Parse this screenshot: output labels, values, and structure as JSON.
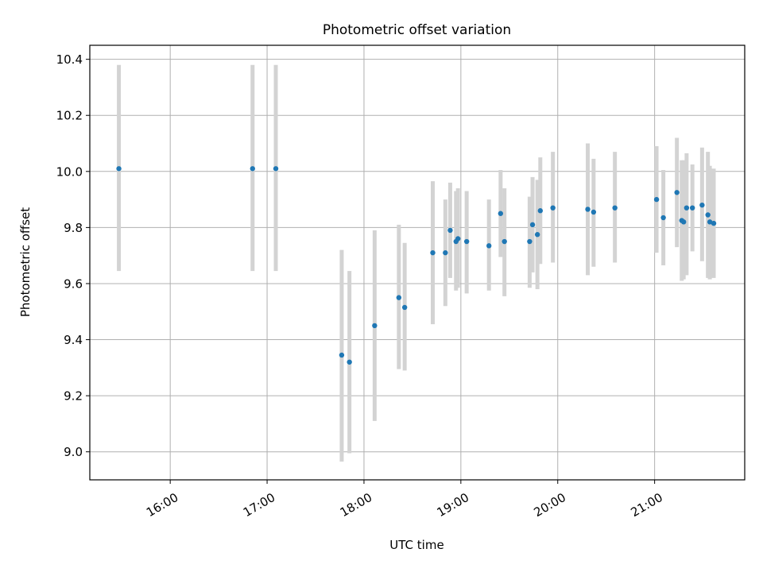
{
  "chart_data": {
    "type": "scatter",
    "title": "Photometric offset variation",
    "xlabel": "UTC time",
    "ylabel": "Photometric offset",
    "x_unit": "hours UTC",
    "xlim": [
      15.17,
      21.93
    ],
    "ylim": [
      8.9,
      10.45
    ],
    "x_ticks": [
      16,
      17,
      18,
      19,
      20,
      21
    ],
    "x_tick_labels": [
      "16:00",
      "17:00",
      "18:00",
      "19:00",
      "20:00",
      "21:00"
    ],
    "y_ticks": [
      9.0,
      9.2,
      9.4,
      9.6,
      9.8,
      10.0,
      10.2,
      10.4
    ],
    "y_tick_labels": [
      "9.0",
      "9.2",
      "9.4",
      "9.6",
      "9.8",
      "10.0",
      "10.2",
      "10.4"
    ],
    "grid": true,
    "colors": {
      "point": "#1f77b4",
      "errorbar": "#d3d3d3",
      "grid": "#b0b0b0"
    },
    "points": [
      {
        "x": 15.47,
        "y": 10.01,
        "ylo": 9.645,
        "yhi": 10.38
      },
      {
        "x": 16.85,
        "y": 10.01,
        "ylo": 9.645,
        "yhi": 10.38
      },
      {
        "x": 17.09,
        "y": 10.01,
        "ylo": 9.645,
        "yhi": 10.38
      },
      {
        "x": 17.77,
        "y": 9.345,
        "ylo": 8.965,
        "yhi": 9.72
      },
      {
        "x": 17.85,
        "y": 9.32,
        "ylo": 8.995,
        "yhi": 9.645
      },
      {
        "x": 18.11,
        "y": 9.45,
        "ylo": 9.11,
        "yhi": 9.79
      },
      {
        "x": 18.36,
        "y": 9.55,
        "ylo": 9.295,
        "yhi": 9.81
      },
      {
        "x": 18.42,
        "y": 9.515,
        "ylo": 9.29,
        "yhi": 9.745
      },
      {
        "x": 18.71,
        "y": 9.71,
        "ylo": 9.455,
        "yhi": 9.965
      },
      {
        "x": 18.84,
        "y": 9.71,
        "ylo": 9.52,
        "yhi": 9.9
      },
      {
        "x": 18.89,
        "y": 9.79,
        "ylo": 9.62,
        "yhi": 9.96
      },
      {
        "x": 18.95,
        "y": 9.75,
        "ylo": 9.575,
        "yhi": 9.93
      },
      {
        "x": 18.97,
        "y": 9.76,
        "ylo": 9.585,
        "yhi": 9.94
      },
      {
        "x": 19.06,
        "y": 9.75,
        "ylo": 9.565,
        "yhi": 9.93
      },
      {
        "x": 19.29,
        "y": 9.735,
        "ylo": 9.575,
        "yhi": 9.9
      },
      {
        "x": 19.41,
        "y": 9.85,
        "ylo": 9.695,
        "yhi": 10.005
      },
      {
        "x": 19.45,
        "y": 9.75,
        "ylo": 9.555,
        "yhi": 9.94
      },
      {
        "x": 19.71,
        "y": 9.75,
        "ylo": 9.585,
        "yhi": 9.91
      },
      {
        "x": 19.74,
        "y": 9.81,
        "ylo": 9.64,
        "yhi": 9.98
      },
      {
        "x": 19.79,
        "y": 9.775,
        "ylo": 9.58,
        "yhi": 9.97
      },
      {
        "x": 19.82,
        "y": 9.86,
        "ylo": 9.67,
        "yhi": 10.05
      },
      {
        "x": 19.95,
        "y": 9.87,
        "ylo": 9.675,
        "yhi": 10.07
      },
      {
        "x": 20.31,
        "y": 9.865,
        "ylo": 9.63,
        "yhi": 10.1
      },
      {
        "x": 20.37,
        "y": 9.855,
        "ylo": 9.66,
        "yhi": 10.045
      },
      {
        "x": 20.59,
        "y": 9.87,
        "ylo": 9.675,
        "yhi": 10.07
      },
      {
        "x": 21.02,
        "y": 9.9,
        "ylo": 9.71,
        "yhi": 10.09
      },
      {
        "x": 21.09,
        "y": 9.835,
        "ylo": 9.665,
        "yhi": 10.005
      },
      {
        "x": 21.23,
        "y": 9.925,
        "ylo": 9.73,
        "yhi": 10.12
      },
      {
        "x": 21.28,
        "y": 9.825,
        "ylo": 9.61,
        "yhi": 10.04
      },
      {
        "x": 21.3,
        "y": 9.82,
        "ylo": 9.615,
        "yhi": 10.04
      },
      {
        "x": 21.33,
        "y": 9.87,
        "ylo": 9.63,
        "yhi": 10.065
      },
      {
        "x": 21.39,
        "y": 9.87,
        "ylo": 9.715,
        "yhi": 10.025
      },
      {
        "x": 21.49,
        "y": 9.88,
        "ylo": 9.68,
        "yhi": 10.085
      },
      {
        "x": 21.55,
        "y": 9.845,
        "ylo": 9.62,
        "yhi": 10.07
      },
      {
        "x": 21.57,
        "y": 9.82,
        "ylo": 9.615,
        "yhi": 10.02
      },
      {
        "x": 21.61,
        "y": 9.815,
        "ylo": 9.62,
        "yhi": 10.01
      }
    ]
  }
}
